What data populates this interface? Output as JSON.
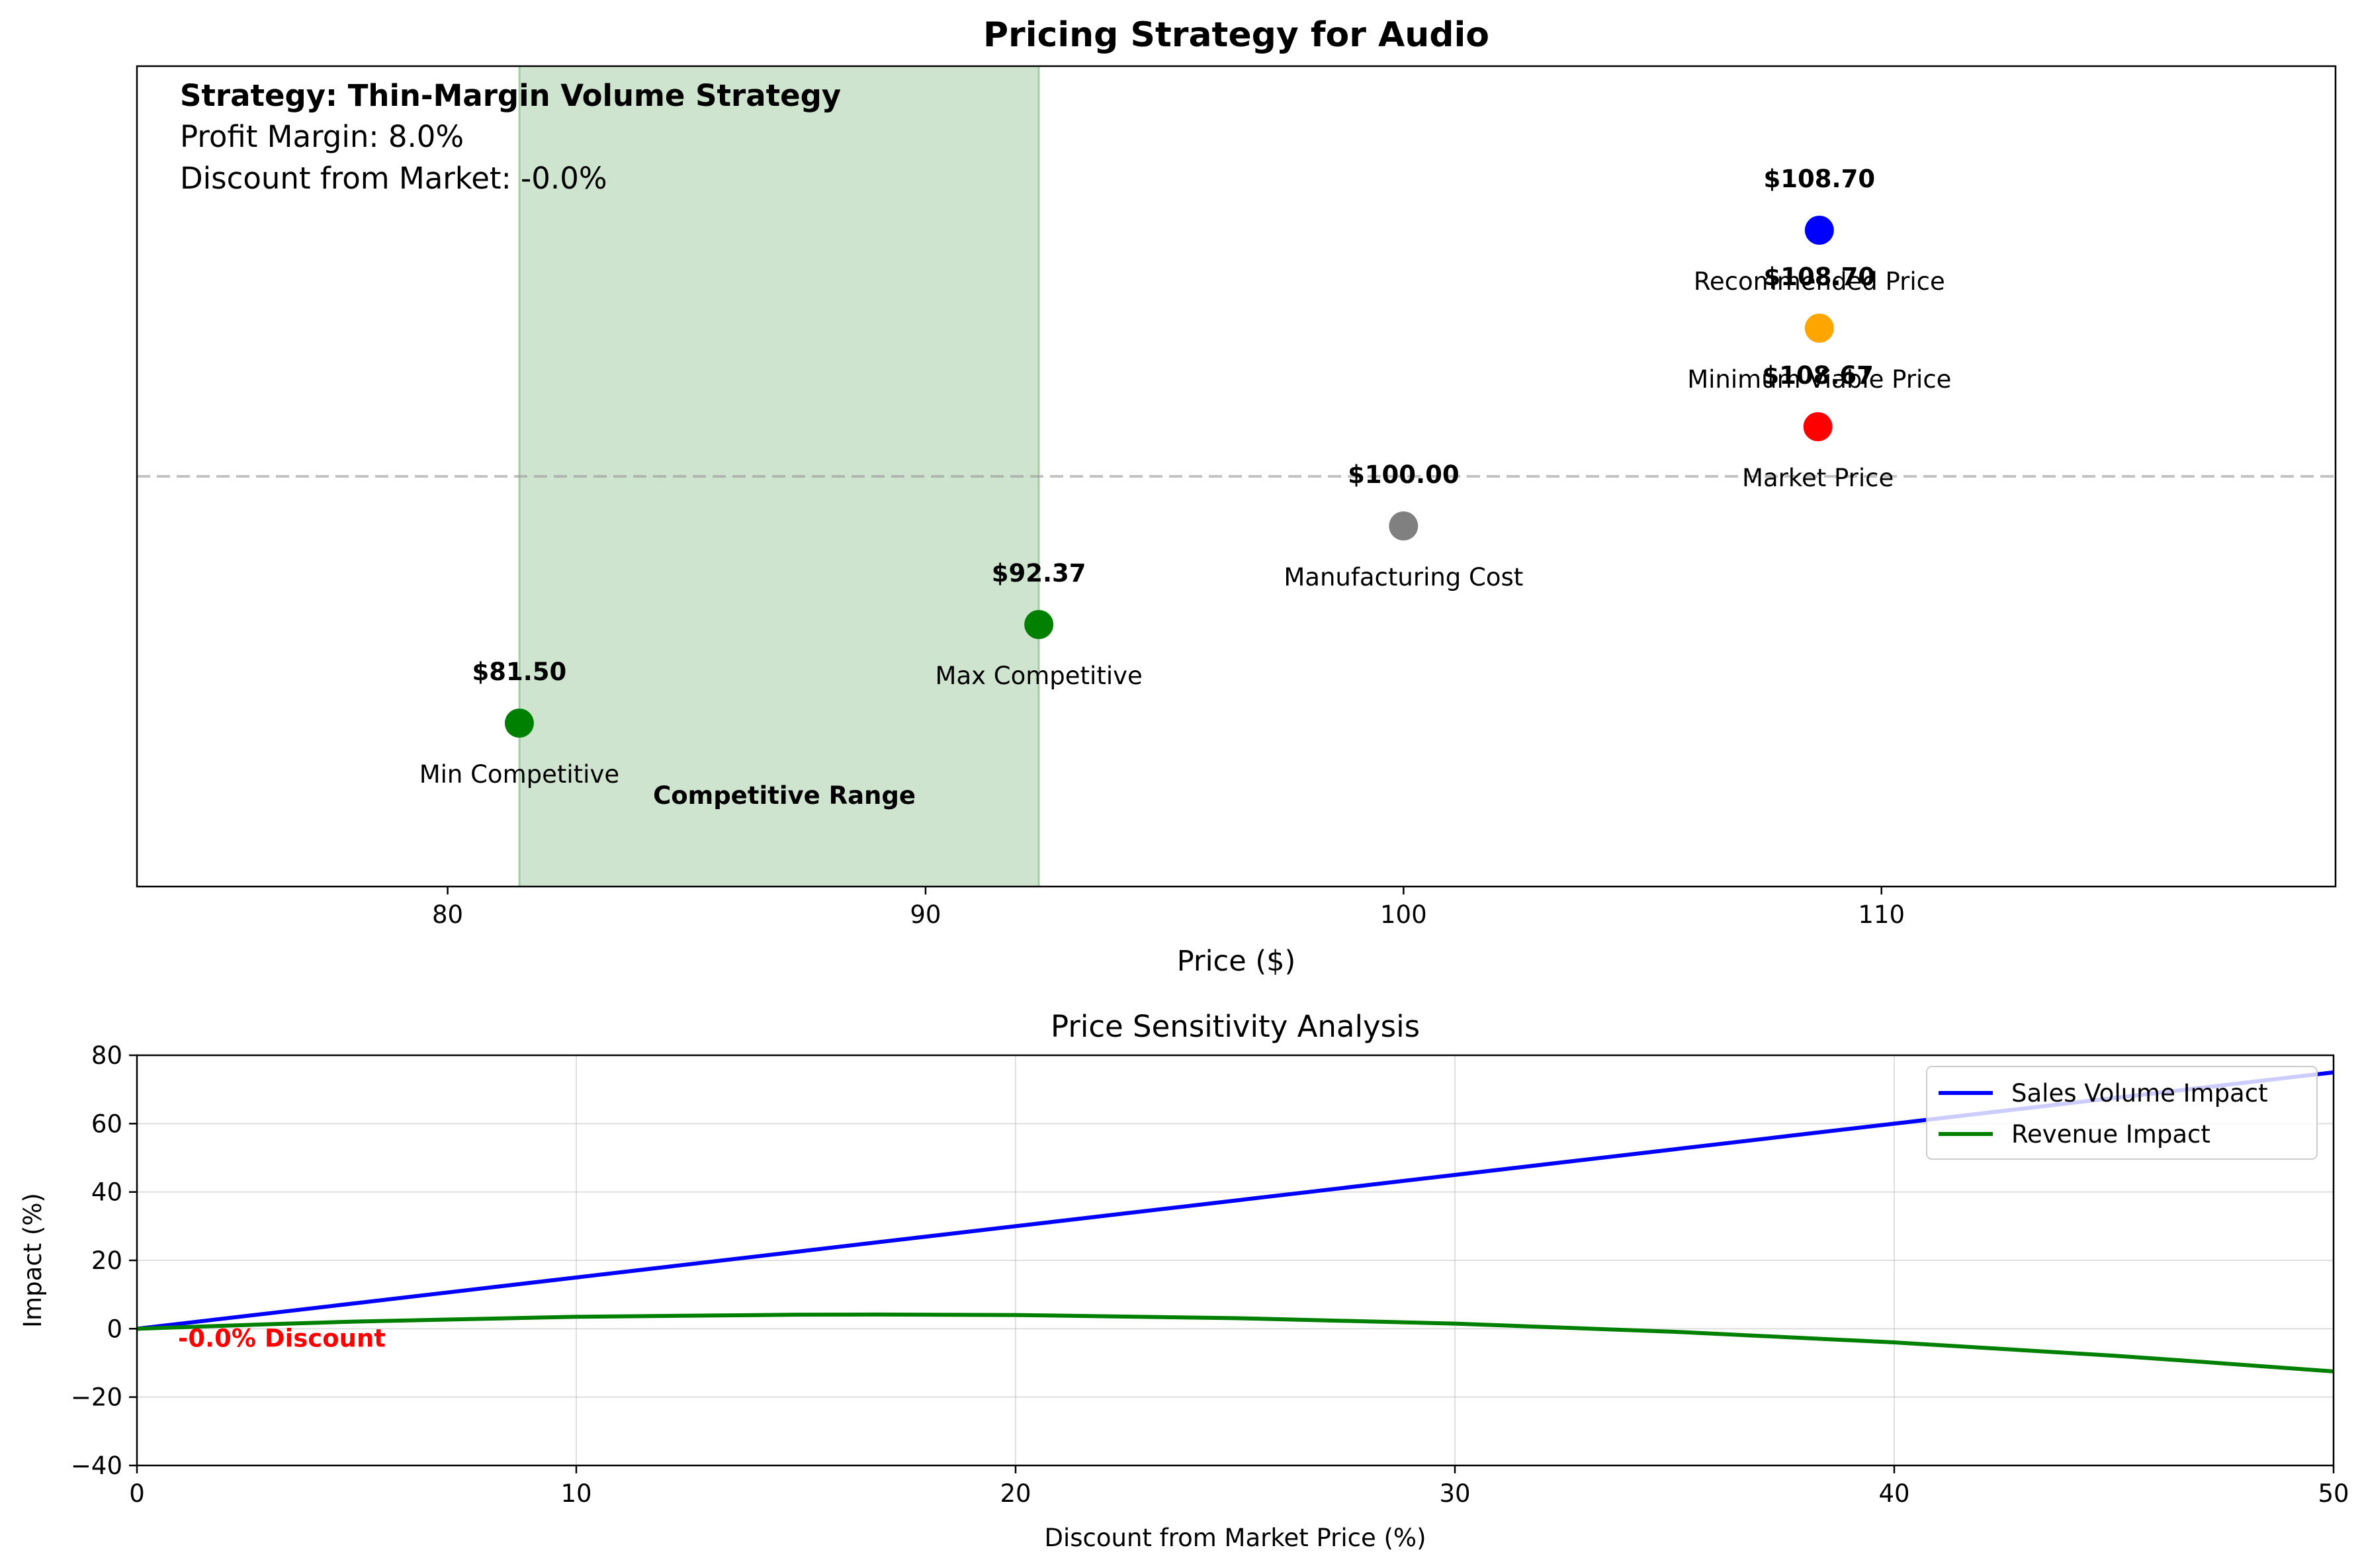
{
  "chart_data": [
    {
      "type": "scatter",
      "title": "Pricing Strategy for Audio",
      "xlabel": "Price ($)",
      "ylabel": "",
      "xlim": [
        73.5,
        119.5
      ],
      "xticks": [
        80,
        90,
        100,
        110
      ],
      "grid": false,
      "info_box": {
        "strategy": "Strategy: Thin-Margin Volume Strategy",
        "margin": "Profit Margin: 8.0%",
        "discount": "Discount from Market: -0.0%"
      },
      "competitive_range": {
        "label": "Competitive Range",
        "min": 81.5,
        "max": 92.37,
        "color": "#2e8b2e"
      },
      "points": [
        {
          "name": "Min Competitive",
          "value": 81.5,
          "value_label": "$81.50",
          "color": "#008000",
          "row": 0
        },
        {
          "name": "Max Competitive",
          "value": 92.37,
          "value_label": "$92.37",
          "color": "#008000",
          "row": 1
        },
        {
          "name": "Manufacturing Cost",
          "value": 100.0,
          "value_label": "$100.00",
          "color": "#808080",
          "row": 2
        },
        {
          "name": "Market Price",
          "value": 108.67,
          "value_label": "$108.67",
          "color": "#ff0000",
          "row": 3
        },
        {
          "name": "Minimum Viable Price",
          "value": 108.7,
          "value_label": "$108.70",
          "color": "#ffa500",
          "row": 4
        },
        {
          "name": "Recommended Price",
          "value": 108.7,
          "value_label": "$108.70",
          "color": "#0000ff",
          "row": 5
        }
      ]
    },
    {
      "type": "line",
      "title": "Price Sensitivity Analysis",
      "xlabel": "Discount from Market Price (%)",
      "ylabel": "Impact (%)",
      "xlim": [
        0,
        50
      ],
      "ylim": [
        -40,
        80
      ],
      "xticks": [
        0,
        10,
        20,
        30,
        40,
        50
      ],
      "yticks": [
        -40,
        -20,
        0,
        20,
        40,
        60,
        80
      ],
      "grid": true,
      "legend": "top-right",
      "x": [
        0,
        5,
        10,
        15,
        20,
        25,
        30,
        35,
        40,
        45,
        50
      ],
      "series": [
        {
          "name": "Sales Volume Impact",
          "color": "#0000ff",
          "values": [
            0,
            7.5,
            15,
            22.5,
            30,
            37.5,
            45,
            52.5,
            60,
            67.5,
            75
          ]
        },
        {
          "name": "Revenue Impact",
          "color": "#008000",
          "values": [
            0,
            2.1,
            3.5,
            4.1,
            4.0,
            3.1,
            1.5,
            -0.9,
            -4.0,
            -7.9,
            -12.5
          ]
        }
      ],
      "annotation": {
        "text": "-0.0% Discount",
        "x": 0,
        "y": 0,
        "color": "#ff0000"
      }
    }
  ]
}
